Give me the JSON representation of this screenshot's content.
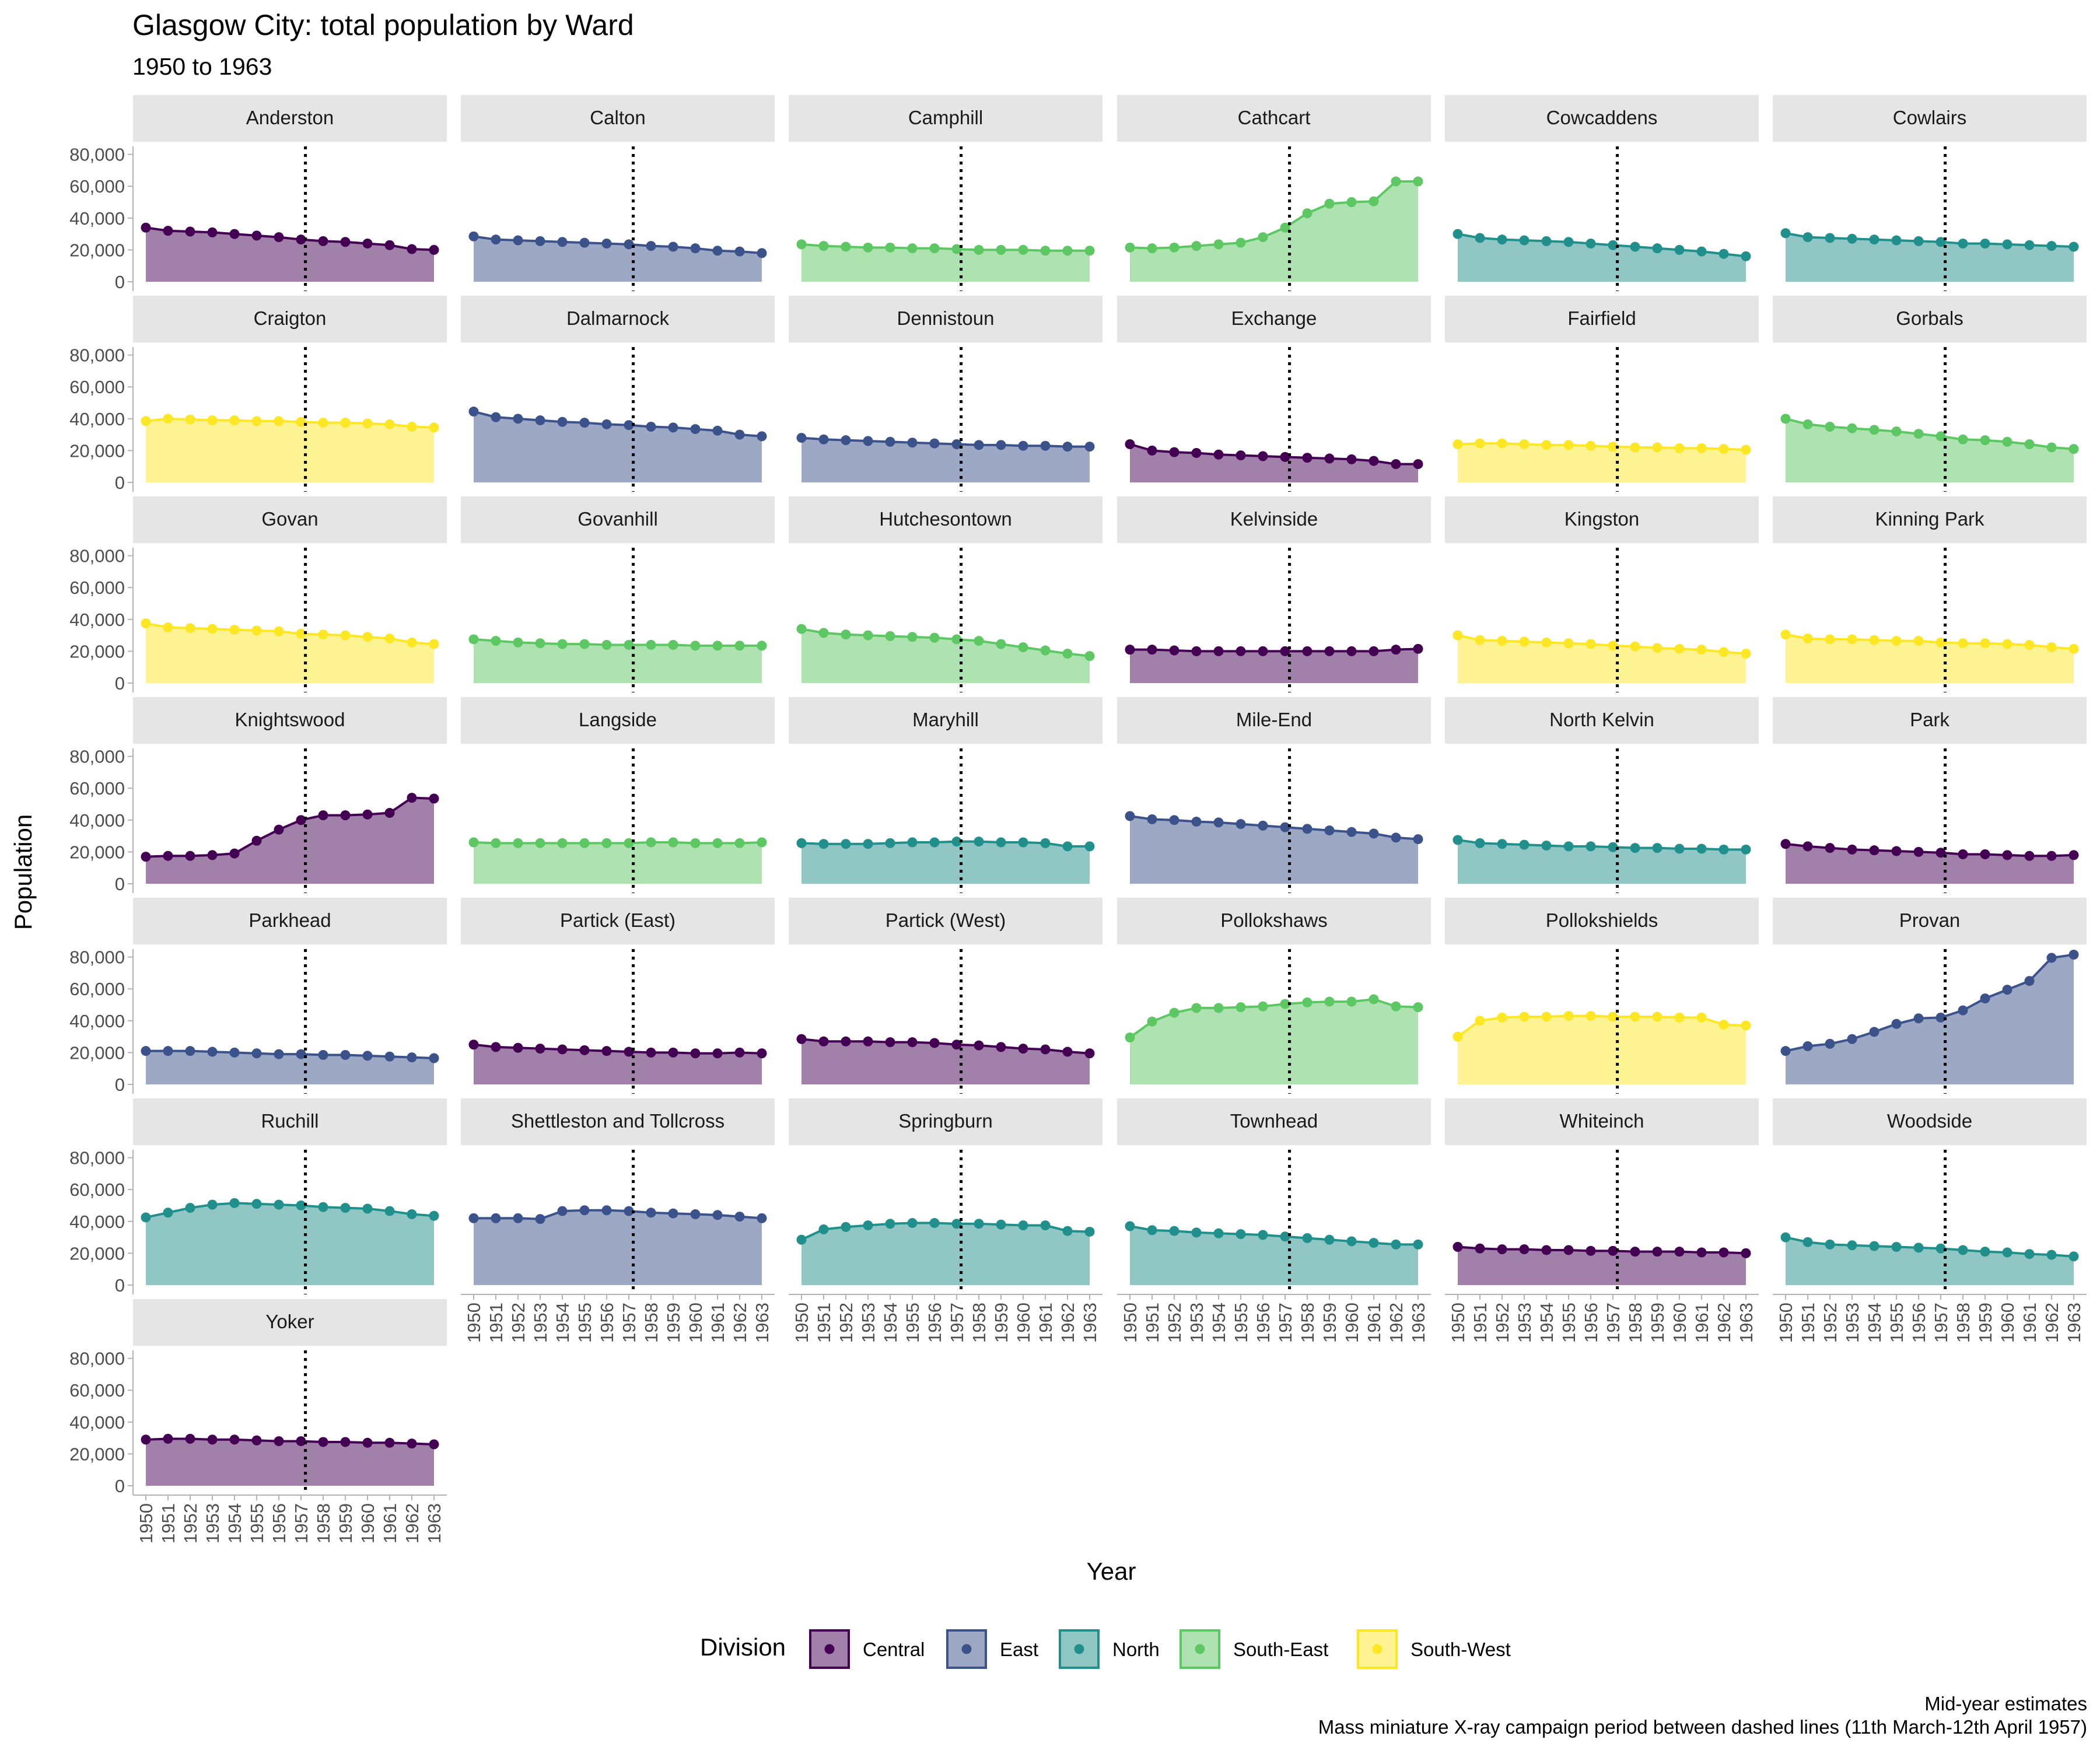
{
  "title": "Glasgow City: total population by Ward",
  "subtitle": "1950 to 1963",
  "caption_line1": "Mid-year estimates",
  "caption_line2": "Mass miniature X-ray campaign period between dashed lines (11th March-12th April 1957)",
  "chart_data": {
    "type": "area",
    "facet_by": "Ward",
    "title": "Glasgow City: total population by Ward",
    "subtitle": "1950 to 1963",
    "xlabel": "Year",
    "ylabel": "Population",
    "x": [
      1950,
      1951,
      1952,
      1953,
      1954,
      1955,
      1956,
      1957,
      1958,
      1959,
      1960,
      1961,
      1962,
      1963
    ],
    "x_ticks": [
      "1950",
      "1951",
      "1952",
      "1953",
      "1954",
      "1955",
      "1956",
      "1957",
      "1958",
      "1959",
      "1960",
      "1961",
      "1962",
      "1963"
    ],
    "ylim": [
      0,
      85000
    ],
    "y_ticks": [
      0,
      20000,
      40000,
      60000,
      80000
    ],
    "y_tick_labels": [
      "0",
      "20,000",
      "40,000",
      "60,000",
      "80,000"
    ],
    "reference_line_x": 1957.2,
    "legend_title": "Division",
    "legend_position": "bottom",
    "divisions": [
      {
        "name": "Central",
        "color": "#440154"
      },
      {
        "name": "East",
        "color": "#3b528b"
      },
      {
        "name": "North",
        "color": "#21908c"
      },
      {
        "name": "South-East",
        "color": "#5dc863"
      },
      {
        "name": "South-West",
        "color": "#fde725"
      }
    ],
    "wards": [
      {
        "name": "Anderston",
        "division": "Central",
        "values": [
          34000,
          32000,
          31500,
          31000,
          30000,
          29000,
          28000,
          26500,
          25500,
          25000,
          24000,
          23000,
          20500,
          20000
        ]
      },
      {
        "name": "Calton",
        "division": "East",
        "values": [
          28500,
          26500,
          26000,
          25500,
          25000,
          24500,
          24000,
          23500,
          22500,
          22000,
          21000,
          19500,
          19000,
          18000
        ]
      },
      {
        "name": "Camphill",
        "division": "South-East",
        "values": [
          23500,
          22500,
          22000,
          21500,
          21500,
          21000,
          21000,
          20500,
          20000,
          20000,
          20000,
          19500,
          19500,
          19500
        ]
      },
      {
        "name": "Cathcart",
        "division": "South-East",
        "values": [
          21500,
          21000,
          21500,
          22500,
          23500,
          24500,
          28000,
          34000,
          43000,
          49000,
          50000,
          50500,
          63000,
          63000
        ]
      },
      {
        "name": "Cowcaddens",
        "division": "North",
        "values": [
          30000,
          27500,
          26500,
          26000,
          25500,
          25000,
          24000,
          23000,
          22000,
          21000,
          20000,
          19000,
          17500,
          16000
        ]
      },
      {
        "name": "Cowlairs",
        "division": "North",
        "values": [
          30500,
          28000,
          27500,
          27000,
          26500,
          26000,
          25500,
          25000,
          24000,
          24000,
          23500,
          23000,
          22500,
          22000
        ]
      },
      {
        "name": "Craigton",
        "division": "South-West",
        "values": [
          38500,
          40000,
          39500,
          39000,
          39000,
          38500,
          38500,
          38000,
          37500,
          37500,
          37000,
          36500,
          35000,
          34500
        ]
      },
      {
        "name": "Dalmarnock",
        "division": "East",
        "values": [
          44500,
          41000,
          40000,
          39000,
          38000,
          37500,
          36500,
          36000,
          35000,
          34500,
          33500,
          32500,
          30000,
          29000
        ]
      },
      {
        "name": "Dennistoun",
        "division": "East",
        "values": [
          28000,
          27000,
          26500,
          26000,
          25500,
          25000,
          24500,
          24000,
          23500,
          23500,
          23000,
          23000,
          22500,
          22500
        ]
      },
      {
        "name": "Exchange",
        "division": "Central",
        "values": [
          24000,
          20000,
          19000,
          18500,
          17500,
          17000,
          16500,
          16000,
          15500,
          15000,
          14500,
          13500,
          11500,
          11500
        ]
      },
      {
        "name": "Fairfield",
        "division": "South-West",
        "values": [
          24000,
          24500,
          24500,
          24000,
          23500,
          23500,
          23000,
          22500,
          22000,
          22000,
          21500,
          21500,
          21000,
          20500
        ]
      },
      {
        "name": "Gorbals",
        "division": "South-East",
        "values": [
          40000,
          36500,
          35000,
          34000,
          33000,
          32000,
          30500,
          29000,
          27000,
          26500,
          25500,
          24000,
          22000,
          21000
        ]
      },
      {
        "name": "Govan",
        "division": "South-West",
        "values": [
          37500,
          35000,
          34500,
          34000,
          33500,
          33000,
          32500,
          31000,
          30500,
          30000,
          29000,
          28000,
          25500,
          24500
        ]
      },
      {
        "name": "Govanhill",
        "division": "South-East",
        "values": [
          27500,
          26500,
          25500,
          25000,
          24500,
          24500,
          24000,
          24000,
          24000,
          24000,
          23500,
          23500,
          23500,
          23500
        ]
      },
      {
        "name": "Hutchesontown",
        "division": "South-East",
        "values": [
          34000,
          31500,
          30500,
          30000,
          29500,
          29000,
          28500,
          27500,
          26500,
          24500,
          22500,
          20500,
          18500,
          17000
        ]
      },
      {
        "name": "Kelvinside",
        "division": "Central",
        "values": [
          21000,
          21000,
          20500,
          20000,
          20000,
          20000,
          20000,
          20000,
          20000,
          20000,
          20000,
          20000,
          21000,
          21500
        ]
      },
      {
        "name": "Kingston",
        "division": "South-West",
        "values": [
          30000,
          27000,
          26500,
          26000,
          25500,
          25000,
          24500,
          23500,
          23000,
          22000,
          21500,
          21000,
          19500,
          18500
        ]
      },
      {
        "name": "Kinning Park",
        "division": "South-West",
        "values": [
          30500,
          28000,
          27500,
          27500,
          27000,
          26500,
          26500,
          25500,
          25000,
          25000,
          24500,
          24000,
          22500,
          21500
        ]
      },
      {
        "name": "Knightswood",
        "division": "Central",
        "values": [
          17000,
          17500,
          17500,
          18000,
          19000,
          27000,
          34000,
          40000,
          43000,
          43000,
          43500,
          44500,
          54000,
          53500
        ]
      },
      {
        "name": "Langside",
        "division": "South-East",
        "values": [
          26000,
          25500,
          25500,
          25500,
          25500,
          25500,
          25500,
          25500,
          26000,
          26000,
          25500,
          25500,
          25500,
          26000
        ]
      },
      {
        "name": "Maryhill",
        "division": "North",
        "values": [
          25500,
          25000,
          25000,
          25000,
          25500,
          26000,
          26000,
          26500,
          26500,
          26000,
          26000,
          25500,
          23500,
          23500
        ]
      },
      {
        "name": "Mile-End",
        "division": "East",
        "values": [
          42500,
          40500,
          40000,
          39000,
          38500,
          37500,
          36500,
          35500,
          34500,
          33500,
          32500,
          31500,
          29000,
          28000
        ]
      },
      {
        "name": "North Kelvin",
        "division": "North",
        "values": [
          27500,
          25500,
          25000,
          24500,
          24000,
          23500,
          23500,
          23000,
          22500,
          22500,
          22000,
          22000,
          21500,
          21500
        ]
      },
      {
        "name": "Park",
        "division": "Central",
        "values": [
          25000,
          23500,
          22500,
          21500,
          21000,
          20500,
          20000,
          19500,
          18500,
          18500,
          18000,
          17500,
          17500,
          18000
        ]
      },
      {
        "name": "Parkhead",
        "division": "East",
        "values": [
          21000,
          21000,
          21000,
          20500,
          20000,
          19500,
          19000,
          19000,
          18500,
          18500,
          18000,
          17500,
          17000,
          16500
        ]
      },
      {
        "name": "Partick (East)",
        "division": "Central",
        "values": [
          25000,
          23500,
          23000,
          22500,
          22000,
          21500,
          21000,
          20500,
          20000,
          20000,
          19500,
          19500,
          20000,
          19500
        ]
      },
      {
        "name": "Partick (West)",
        "division": "Central",
        "values": [
          28500,
          27000,
          27000,
          27000,
          26500,
          26500,
          26000,
          25000,
          24500,
          23500,
          22500,
          22000,
          20500,
          19500
        ]
      },
      {
        "name": "Pollokshaws",
        "division": "South-East",
        "values": [
          29500,
          39500,
          45000,
          48000,
          48000,
          48500,
          49000,
          50500,
          51500,
          52000,
          52000,
          53500,
          49000,
          48500
        ]
      },
      {
        "name": "Pollokshields",
        "division": "South-West",
        "values": [
          30000,
          40000,
          42000,
          42500,
          42500,
          43000,
          43000,
          42500,
          42500,
          42500,
          42000,
          42000,
          37500,
          37000
        ]
      },
      {
        "name": "Provan",
        "division": "East",
        "values": [
          21000,
          24000,
          25500,
          28500,
          33000,
          38000,
          41500,
          42000,
          46500,
          54000,
          59500,
          65000,
          79500,
          81500
        ]
      },
      {
        "name": "Ruchill",
        "division": "North",
        "values": [
          42500,
          45500,
          48500,
          50500,
          51500,
          51000,
          50500,
          50000,
          49000,
          48500,
          48000,
          46500,
          44500,
          43500
        ]
      },
      {
        "name": "Shettleston and Tollcross",
        "division": "East",
        "values": [
          42000,
          42000,
          42000,
          41500,
          46500,
          47000,
          47000,
          46500,
          45500,
          45000,
          44500,
          44000,
          43000,
          42000
        ]
      },
      {
        "name": "Springburn",
        "division": "North",
        "values": [
          28500,
          35000,
          36500,
          37500,
          38500,
          39000,
          39000,
          38500,
          38500,
          38000,
          37500,
          37500,
          34000,
          33500
        ]
      },
      {
        "name": "Townhead",
        "division": "North",
        "values": [
          37000,
          34500,
          34000,
          33000,
          32500,
          32000,
          31500,
          30500,
          29500,
          28500,
          27500,
          26500,
          25500,
          25500
        ]
      },
      {
        "name": "Whiteinch",
        "division": "Central",
        "values": [
          24000,
          23000,
          22500,
          22500,
          22000,
          22000,
          21500,
          21500,
          21000,
          21000,
          21000,
          20500,
          20500,
          20000
        ]
      },
      {
        "name": "Woodside",
        "division": "North",
        "values": [
          30000,
          27000,
          25500,
          25000,
          24500,
          24000,
          23500,
          23000,
          22000,
          21000,
          20500,
          19500,
          19000,
          18000
        ]
      },
      {
        "name": "Yoker",
        "division": "Central",
        "values": [
          29000,
          29500,
          29500,
          29000,
          29000,
          28500,
          28000,
          28000,
          27500,
          27500,
          27000,
          27000,
          26500,
          26000
        ]
      }
    ]
  }
}
